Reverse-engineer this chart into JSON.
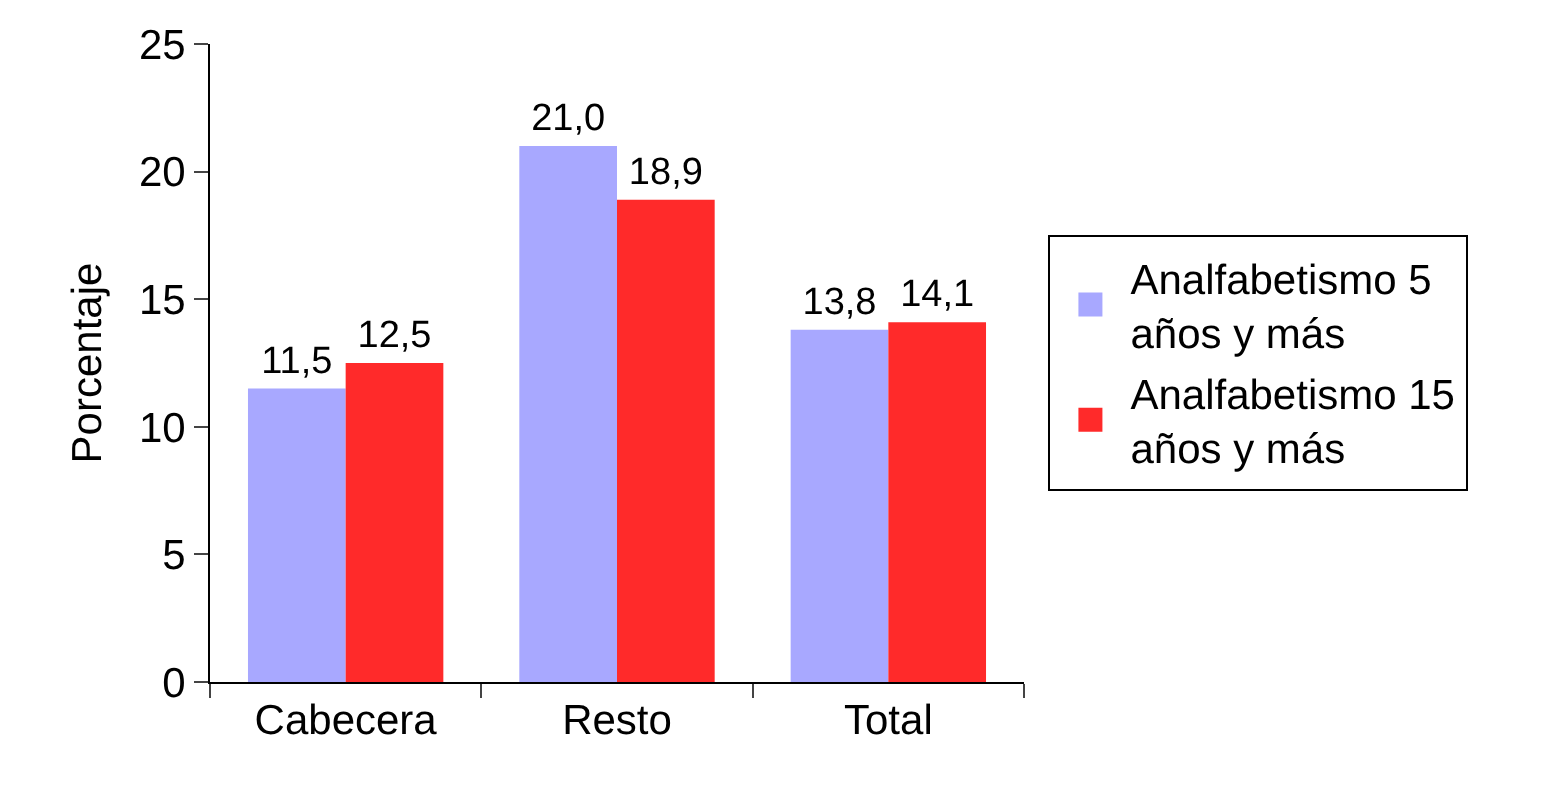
{
  "chart_data": {
    "type": "bar",
    "ylabel": "Porcentaje",
    "categories": [
      "Cabecera",
      "Resto",
      "Total"
    ],
    "series": [
      {
        "name": "Analfabetismo 5 años y más",
        "color": "#a8a8ff",
        "values": [
          11.5,
          21.0,
          13.8
        ],
        "value_labels": [
          "11,5",
          "21,0",
          "13,8"
        ]
      },
      {
        "name": "Analfabetismo 15 años y más",
        "color": "#ff2a2a",
        "values": [
          12.5,
          18.9,
          14.1
        ],
        "value_labels": [
          "12,5",
          "18,9",
          "14,1"
        ]
      }
    ],
    "ylim": [
      0,
      25
    ],
    "yticks": [
      0,
      5,
      10,
      15,
      20,
      25
    ],
    "grid": false,
    "legend": "right"
  }
}
